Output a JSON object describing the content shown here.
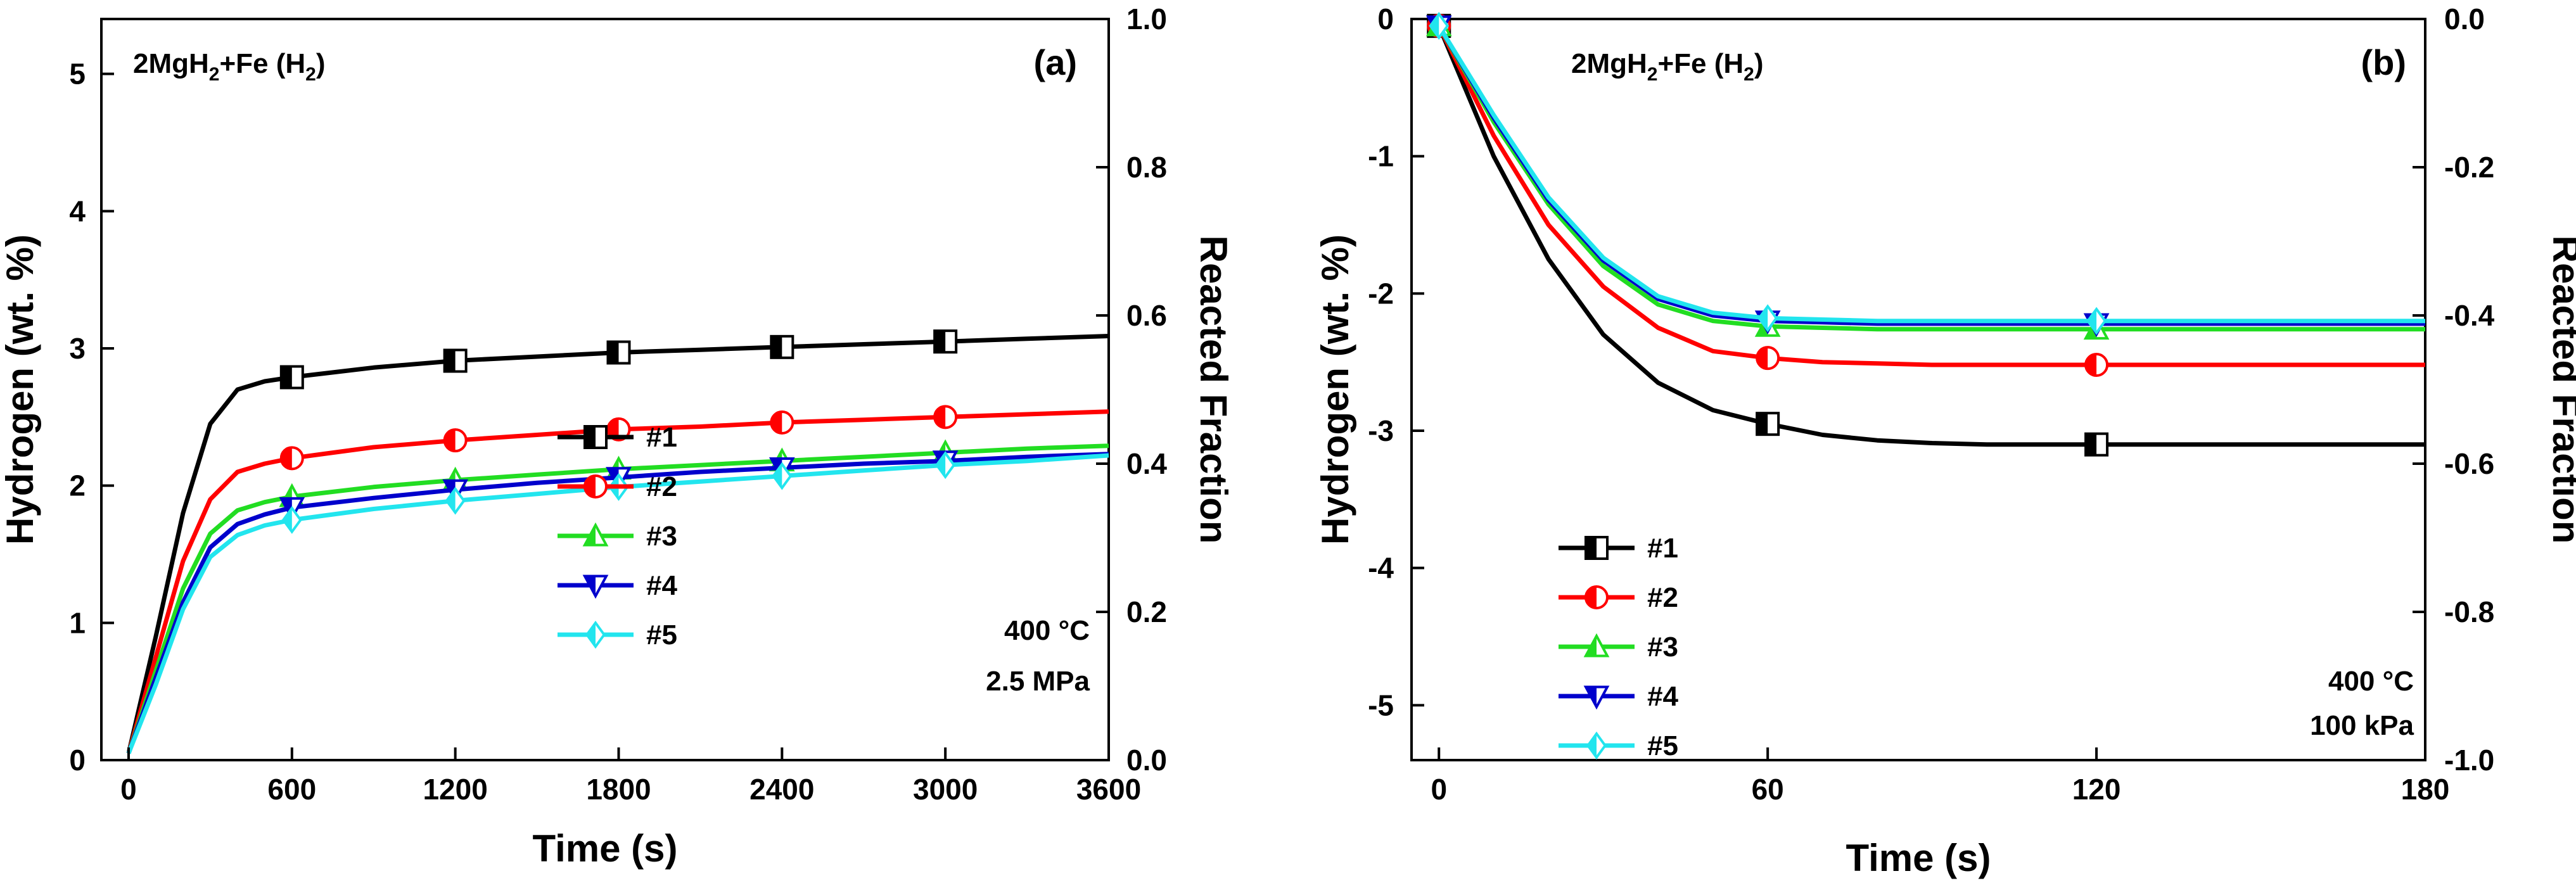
{
  "chart_data": [
    {
      "type": "line",
      "panel_label": "(a)",
      "title": "2MgH2+Fe (H2)",
      "title_parts": {
        "a": "2MgH",
        "b": "2",
        "c": "+Fe (H",
        "d": "2",
        "e": ")"
      },
      "xlabel": "Time (s)",
      "ylabel": "Hydrogen (wt. %)",
      "y2label": "Reacted Fraction",
      "xlim": [
        -100,
        3600
      ],
      "ylim": [
        0,
        5.4
      ],
      "y2lim": [
        0.0,
        1.0
      ],
      "xticks": [
        "0",
        "600",
        "1200",
        "1800",
        "2400",
        "3000",
        "3600"
      ],
      "yticks": [
        "0",
        "1",
        "2",
        "3",
        "4",
        "5"
      ],
      "y2ticks": [
        "0.0",
        "0.2",
        "0.4",
        "0.6",
        "0.8",
        "1.0"
      ],
      "annotation": [
        "400 °C",
        "2.5 MPa"
      ],
      "legend_position": "center-left",
      "series": [
        {
          "name": "#1",
          "color": "#000000",
          "marker": "square",
          "x": [
            0,
            100,
            200,
            300,
            400,
            500,
            600,
            900,
            1200,
            1500,
            1800,
            2100,
            2400,
            2700,
            3000,
            3300,
            3600
          ],
          "values": [
            0.05,
            0.9,
            1.8,
            2.45,
            2.7,
            2.76,
            2.79,
            2.86,
            2.91,
            2.94,
            2.97,
            2.99,
            3.01,
            3.03,
            3.05,
            3.07,
            3.09
          ],
          "marker_x": [
            600,
            1200,
            1800,
            2400,
            3000
          ]
        },
        {
          "name": "#2",
          "color": "#ff0000",
          "marker": "circle",
          "x": [
            0,
            100,
            200,
            300,
            400,
            500,
            600,
            900,
            1200,
            1500,
            1800,
            2100,
            2400,
            2700,
            3000,
            3300,
            3600
          ],
          "values": [
            0.05,
            0.75,
            1.45,
            1.9,
            2.1,
            2.16,
            2.2,
            2.28,
            2.33,
            2.37,
            2.41,
            2.43,
            2.46,
            2.48,
            2.5,
            2.52,
            2.54
          ],
          "marker_x": [
            600,
            1200,
            1800,
            2400,
            3000
          ]
        },
        {
          "name": "#3",
          "color": "#22dd22",
          "marker": "triangle-up",
          "x": [
            0,
            100,
            200,
            300,
            400,
            500,
            600,
            900,
            1200,
            1500,
            1800,
            2100,
            2400,
            2700,
            3000,
            3300,
            3600
          ],
          "values": [
            0.05,
            0.65,
            1.25,
            1.65,
            1.82,
            1.88,
            1.92,
            1.99,
            2.04,
            2.08,
            2.12,
            2.15,
            2.18,
            2.21,
            2.24,
            2.27,
            2.29
          ],
          "marker_x": [
            600,
            1200,
            1800,
            2400,
            3000
          ]
        },
        {
          "name": "#4",
          "color": "#0000cc",
          "marker": "triangle-down",
          "x": [
            0,
            100,
            200,
            300,
            400,
            500,
            600,
            900,
            1200,
            1500,
            1800,
            2100,
            2400,
            2700,
            3000,
            3300,
            3600
          ],
          "values": [
            0.05,
            0.6,
            1.15,
            1.55,
            1.72,
            1.79,
            1.84,
            1.91,
            1.97,
            2.02,
            2.06,
            2.1,
            2.13,
            2.16,
            2.18,
            2.21,
            2.23
          ],
          "marker_x": [
            600,
            1200,
            1800,
            2400,
            3000
          ]
        },
        {
          "name": "#5",
          "color": "#22e5ee",
          "marker": "diamond",
          "x": [
            0,
            100,
            200,
            300,
            400,
            500,
            600,
            900,
            1200,
            1500,
            1800,
            2100,
            2400,
            2700,
            3000,
            3300,
            3600
          ],
          "values": [
            0.05,
            0.55,
            1.1,
            1.48,
            1.64,
            1.71,
            1.75,
            1.83,
            1.89,
            1.94,
            1.99,
            2.03,
            2.07,
            2.11,
            2.15,
            2.18,
            2.22
          ],
          "marker_x": [
            600,
            1200,
            1800,
            2400,
            3000
          ]
        }
      ]
    },
    {
      "type": "line",
      "panel_label": "(b)",
      "title": "2MgH2+Fe (H2)",
      "title_parts": {
        "a": "2MgH",
        "b": "2",
        "c": "+Fe (H",
        "d": "2",
        "e": ")"
      },
      "xlabel": "Time (s)",
      "ylabel": "Hydrogen (wt. %)",
      "y2label": "Reacted Fraction",
      "xlim": [
        -5,
        180
      ],
      "ylim": [
        -5.4,
        0
      ],
      "y2lim": [
        -1.0,
        0.0
      ],
      "xticks": [
        "0",
        "60",
        "120",
        "180"
      ],
      "yticks": [
        "0",
        "-1",
        "-2",
        "-3",
        "-4",
        "-5"
      ],
      "y2ticks": [
        "0.0",
        "-0.2",
        "-0.4",
        "-0.6",
        "-0.8",
        "-1.0"
      ],
      "annotation": [
        "400 °C",
        "100 kPa"
      ],
      "legend_position": "lower-left",
      "series": [
        {
          "name": "#1",
          "color": "#000000",
          "marker": "square",
          "x": [
            0,
            10,
            20,
            30,
            40,
            50,
            60,
            70,
            80,
            90,
            100,
            120,
            140,
            160,
            180
          ],
          "values": [
            -0.05,
            -1.0,
            -1.75,
            -2.3,
            -2.65,
            -2.85,
            -2.95,
            -3.03,
            -3.07,
            -3.09,
            -3.1,
            -3.1,
            -3.1,
            -3.1,
            -3.1
          ],
          "marker_x": [
            0,
            60,
            120
          ]
        },
        {
          "name": "#2",
          "color": "#ff0000",
          "marker": "circle",
          "x": [
            0,
            10,
            20,
            30,
            40,
            50,
            60,
            70,
            80,
            90,
            100,
            120,
            140,
            160,
            180
          ],
          "values": [
            -0.05,
            -0.85,
            -1.5,
            -1.95,
            -2.25,
            -2.42,
            -2.47,
            -2.5,
            -2.51,
            -2.52,
            -2.52,
            -2.52,
            -2.52,
            -2.52,
            -2.52
          ],
          "marker_x": [
            0,
            60,
            120
          ]
        },
        {
          "name": "#3",
          "color": "#22dd22",
          "marker": "triangle-up",
          "x": [
            0,
            10,
            20,
            30,
            40,
            50,
            60,
            70,
            80,
            90,
            100,
            120,
            140,
            160,
            180
          ],
          "values": [
            -0.05,
            -0.75,
            -1.35,
            -1.8,
            -2.08,
            -2.2,
            -2.24,
            -2.25,
            -2.26,
            -2.26,
            -2.26,
            -2.26,
            -2.26,
            -2.26,
            -2.26
          ],
          "marker_x": [
            0,
            60,
            120
          ]
        },
        {
          "name": "#4",
          "color": "#0000cc",
          "marker": "triangle-down",
          "x": [
            0,
            10,
            20,
            30,
            40,
            50,
            60,
            70,
            80,
            90,
            100,
            120,
            140,
            160,
            180
          ],
          "values": [
            -0.05,
            -0.72,
            -1.32,
            -1.76,
            -2.04,
            -2.16,
            -2.2,
            -2.21,
            -2.22,
            -2.22,
            -2.22,
            -2.22,
            -2.22,
            -2.22,
            -2.22
          ],
          "marker_x": [
            0,
            60,
            120
          ]
        },
        {
          "name": "#5",
          "color": "#22e5ee",
          "marker": "diamond",
          "x": [
            0,
            10,
            20,
            30,
            40,
            50,
            60,
            70,
            80,
            90,
            100,
            120,
            140,
            160,
            180
          ],
          "values": [
            -0.05,
            -0.7,
            -1.3,
            -1.74,
            -2.02,
            -2.14,
            -2.18,
            -2.19,
            -2.2,
            -2.2,
            -2.2,
            -2.2,
            -2.2,
            -2.2,
            -2.2
          ],
          "marker_x": [
            0,
            60,
            120
          ]
        }
      ]
    }
  ]
}
